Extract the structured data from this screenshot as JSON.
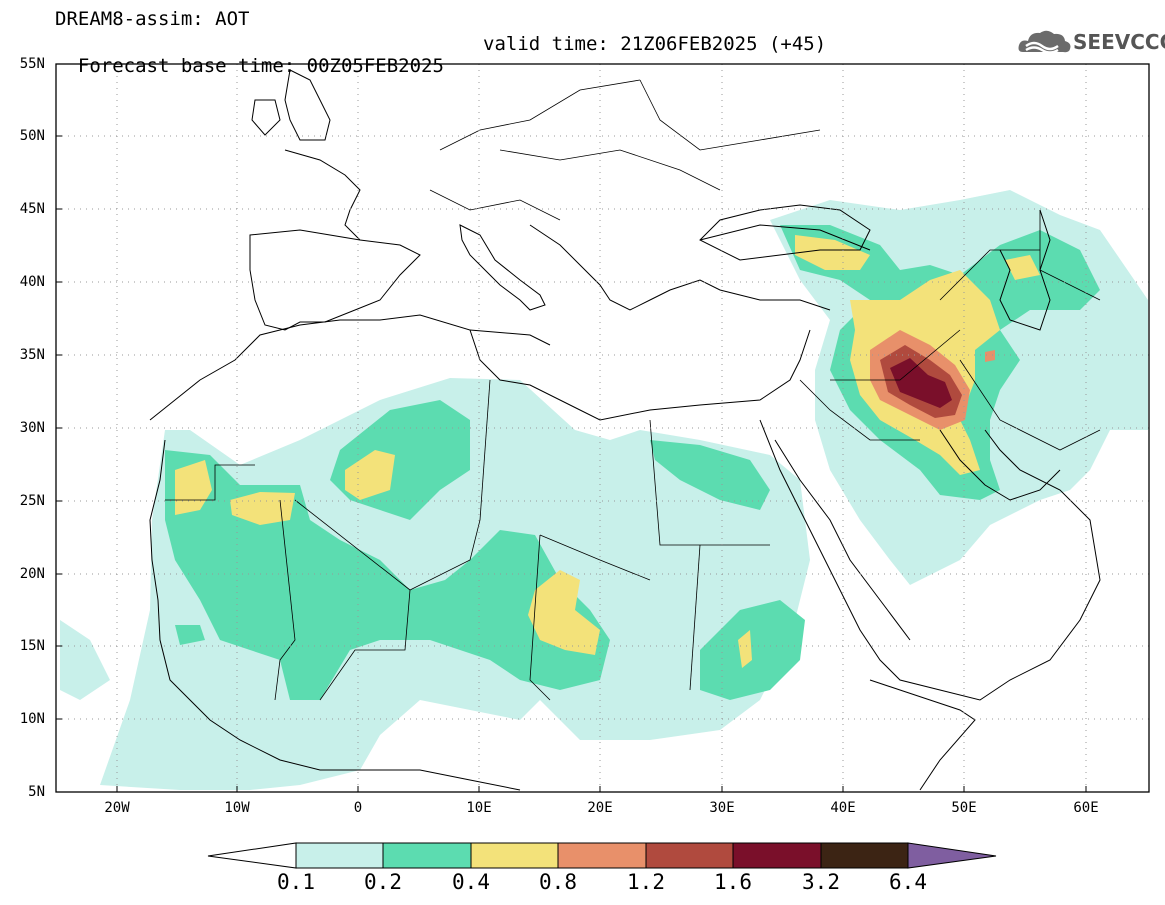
{
  "title": {
    "line1": "DREAM8-assim: AOT",
    "base_time": "Forecast base time: 00Z05FEB2025",
    "valid_time": "valid time: 21Z06FEB2025 (+45)"
  },
  "logo": {
    "text": "SEEVCCC",
    "icon": "cloud-icon"
  },
  "map": {
    "lat_labels": [
      "55N",
      "50N",
      "45N",
      "40N",
      "35N",
      "30N",
      "25N",
      "20N",
      "15N",
      "10N",
      "5N"
    ],
    "lon_labels": [
      "20W",
      "10W",
      "0",
      "10E",
      "20E",
      "30E",
      "40E",
      "50E",
      "60E"
    ],
    "lon_range": [
      -25,
      65
    ],
    "lat_range": [
      5,
      55
    ],
    "grid": "dotted"
  },
  "colorbar": {
    "labels": [
      "0.1",
      "0.2",
      "0.4",
      "0.8",
      "1.2",
      "1.6",
      "3.2",
      "6.4"
    ],
    "colors": [
      "#ffffff",
      "#c8f0ea",
      "#5cdcb0",
      "#f3e27a",
      "#e8906a",
      "#b04a3e",
      "#7a0f2a",
      "#3c2414",
      "#7f5ea0"
    ]
  }
}
